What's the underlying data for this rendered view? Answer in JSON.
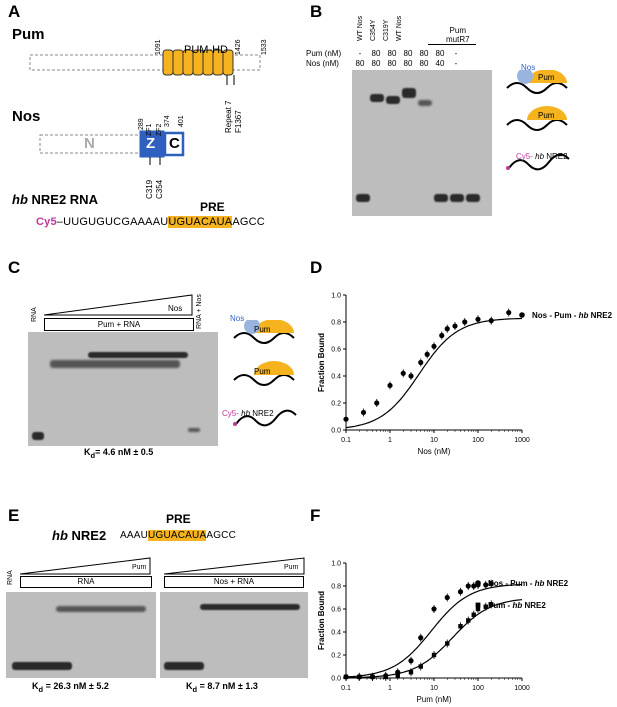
{
  "panels": {
    "A": {
      "letter": "A",
      "pum_label": "Pum",
      "pum_domain": "PUM-HD",
      "pum_num_start": "1091",
      "pum_num_mid": "1426",
      "pum_num_end": "1533",
      "repeat7": "Repeat 7",
      "f1367": "F1367",
      "nos_label": "Nos",
      "nos_n": "N",
      "nos_z": "Z",
      "nos_c": "C",
      "nos_289": "289",
      "nos_zf1": "ZF1",
      "nos_zf2": "ZF2",
      "nos_374": "374",
      "nos_401": "401",
      "c319": "C319",
      "c354": "C354",
      "rna_title_italic": "hb",
      "rna_title_rest": " NRE2 RNA",
      "pre": "PRE",
      "cy5": "Cy5",
      "seq_pre_before": "–UUGUGUCGAAAAU",
      "seq_pre": "UGUACAUA",
      "seq_after": "AGCC"
    },
    "B": {
      "letter": "B",
      "col_labels": [
        "WT Nos",
        "C354Y",
        "C319Y",
        "WT Nos"
      ],
      "mutr7": "Pum\nmutR7",
      "mutr7_line1": "Pum",
      "mutr7_line2": "mutR7",
      "pum_row_label": "Pum (nM)",
      "nos_row_label": "Nos (nM)",
      "pum_values": [
        "-",
        "80",
        "80",
        "80",
        "80",
        "80",
        "-"
      ],
      "nos_values": [
        "80",
        "80",
        "80",
        "80",
        "80",
        "40",
        "-"
      ],
      "legend_nos": "Nos",
      "legend_pum": "Pum",
      "legend_pum2": "Pum",
      "legend_cy5": "Cy5-",
      "legend_hb": "hb",
      "legend_nre2": " NRE2"
    },
    "C": {
      "letter": "C",
      "rna": "RNA",
      "nos": "Nos",
      "pum_rna": "Pum + RNA",
      "rna_nos": "RNA + Nos",
      "kd": "K",
      "kd_sub": "d",
      "kd_value": "= 4.6 nM ± 0.5",
      "legend_nos": "Nos",
      "legend_pum": "Pum",
      "legend_pum2": "Pum",
      "legend_cy5": "Cy5-",
      "legend_hb": "hb",
      "legend_nre2": " NRE2"
    },
    "D": {
      "letter": "D",
      "legend_prefix": "Nos - Pum - ",
      "legend_italic": "hb",
      "legend_suffix": " NRE2"
    },
    "E": {
      "letter": "E",
      "title_italic": "hb",
      "title_rest": " NRE2",
      "pre": "PRE",
      "seq_before": "AAAU",
      "seq_pre": "UGUACAUA",
      "seq_after": "AGCC",
      "rna": "RNA",
      "pum": "Pum",
      "pum2": "Pum",
      "box1": "RNA",
      "box2": "Nos + RNA",
      "kd1_value": "= 26.3 nM ± 5.2",
      "kd2_value": "= 8.7 nM  ± 1.3",
      "kd_k": "K",
      "kd_d": "d"
    },
    "F": {
      "letter": "F",
      "legend1_prefix": "Nos - Pum - ",
      "legend1_italic": "hb",
      "legend1_suffix": " NRE2",
      "legend2_prefix": "Pum - ",
      "legend2_italic": "hb",
      "legend2_suffix": " NRE2"
    }
  },
  "colors": {
    "pum_repeats": "#f4b31f",
    "nos_blue": "#2f5fbf",
    "cy5_magenta": "#c0389c",
    "gel_bg": "#bdbdbd"
  },
  "chart_data": [
    {
      "panel": "D",
      "type": "scatter",
      "xlabel": "Nos (nM)",
      "ylabel": "Fraction Bound",
      "xscale": "log",
      "xlim": [
        0.1,
        1000
      ],
      "ylim": [
        0,
        1.0
      ],
      "xticks": [
        "0.1",
        "1",
        "10",
        "100",
        "1000"
      ],
      "yticks": [
        "0.0",
        "0.2",
        "0.4",
        "0.6",
        "0.8",
        "1.0"
      ],
      "series": [
        {
          "name": "Nos - Pum - hb NRE2",
          "x": [
            0.1,
            0.25,
            0.5,
            1,
            2,
            3,
            5,
            7,
            10,
            15,
            20,
            30,
            50,
            100,
            200,
            500
          ],
          "y": [
            0.08,
            0.13,
            0.2,
            0.33,
            0.42,
            0.4,
            0.5,
            0.56,
            0.62,
            0.7,
            0.75,
            0.77,
            0.8,
            0.82,
            0.81,
            0.87
          ],
          "fit_kd": 4.6,
          "fit_max": 0.83
        }
      ]
    },
    {
      "panel": "F",
      "type": "scatter",
      "xlabel": "Pum (nM)",
      "ylabel": "Fraction Bound",
      "xscale": "log",
      "xlim": [
        0.1,
        1000
      ],
      "ylim": [
        0,
        1.0
      ],
      "xticks": [
        "0.1",
        "1",
        "10",
        "100",
        "1000"
      ],
      "yticks": [
        "0.0",
        "0.2",
        "0.4",
        "0.6",
        "0.8",
        "1.0"
      ],
      "series": [
        {
          "name": "Nos - Pum - hb NRE2",
          "x": [
            0.1,
            0.2,
            0.4,
            0.8,
            1.5,
            3,
            5,
            10,
            20,
            40,
            60,
            80,
            100,
            150,
            200
          ],
          "y": [
            0.01,
            0.01,
            0.01,
            0.02,
            0.05,
            0.15,
            0.35,
            0.6,
            0.7,
            0.75,
            0.8,
            0.8,
            0.81,
            0.81,
            0.82
          ],
          "fit_kd": 8.7,
          "fit_max": 0.82
        },
        {
          "name": "Pum - hb NRE2",
          "x": [
            0.1,
            0.2,
            0.4,
            0.8,
            1.5,
            3,
            5,
            10,
            20,
            40,
            60,
            80,
            100,
            150,
            200
          ],
          "y": [
            0.01,
            0.01,
            0.01,
            0.01,
            0.02,
            0.05,
            0.1,
            0.2,
            0.3,
            0.45,
            0.5,
            0.55,
            0.6,
            0.62,
            0.64
          ],
          "fit_kd": 26.3,
          "fit_max": 0.7
        }
      ]
    }
  ]
}
